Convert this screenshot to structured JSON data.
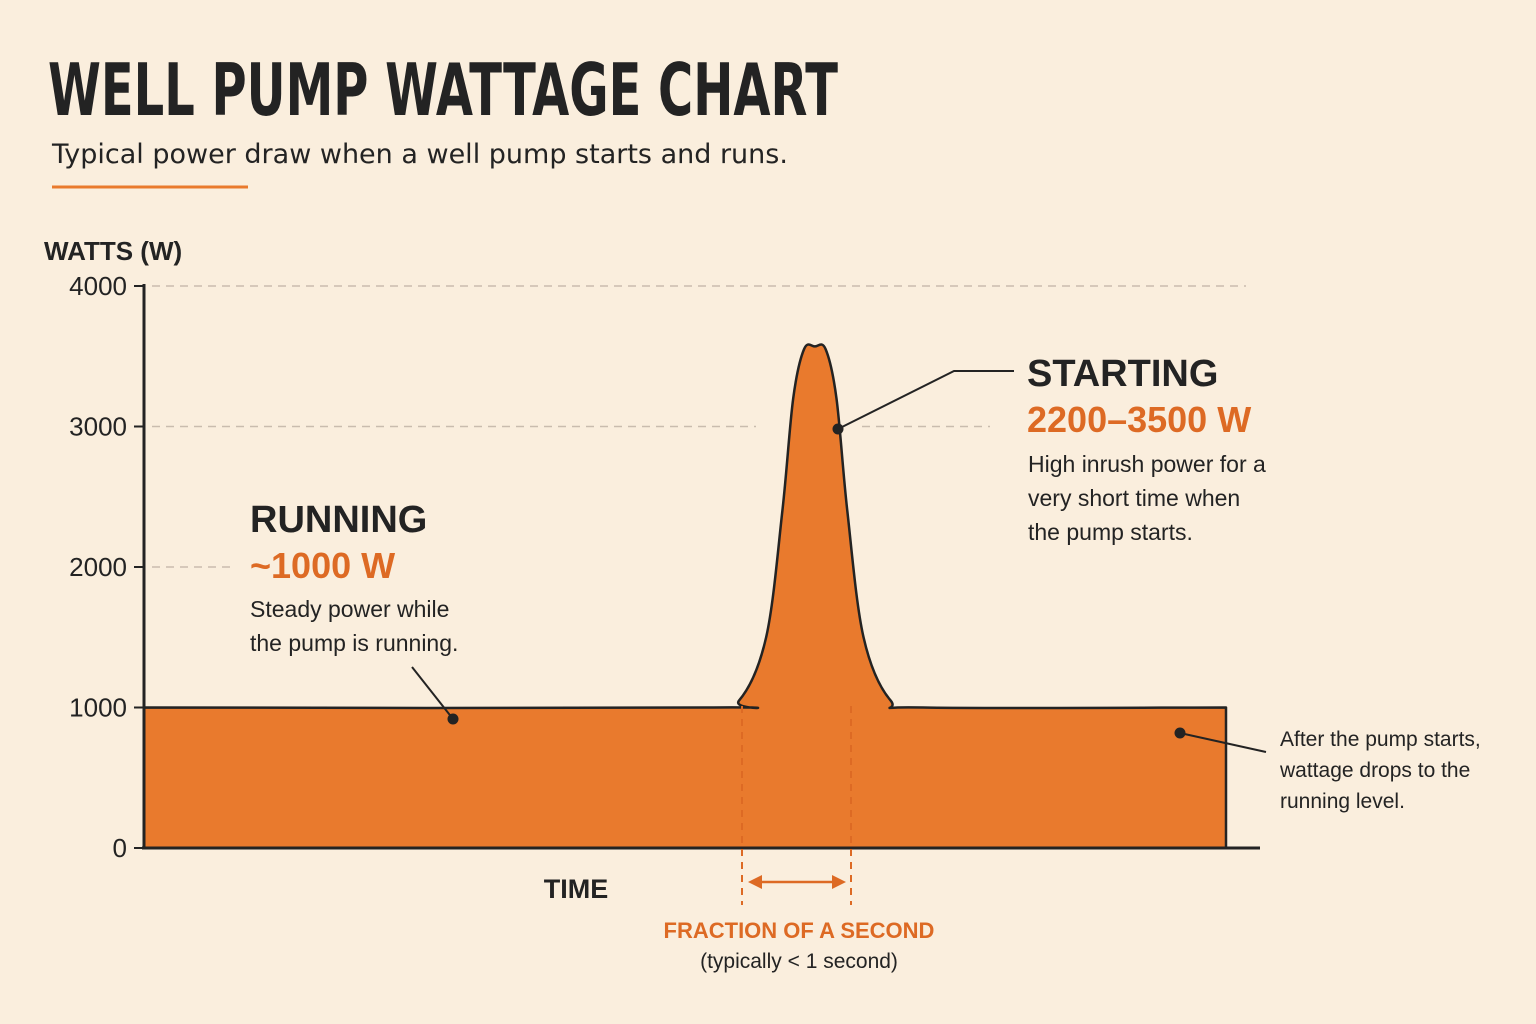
{
  "title": "WELL PUMP WATTAGE CHART",
  "subtitle": "Typical power draw when a well pump starts and runs.",
  "colors": {
    "background": "#faeedd",
    "accent": "#e97a2d",
    "accent_text": "#dd6a24",
    "ink": "#232323",
    "grid": "#c9bcae"
  },
  "chart_data": {
    "type": "area",
    "ylabel": "WATTS (W)",
    "xlabel": "TIME",
    "ylim": [
      0,
      4000
    ],
    "yticks": [
      "0",
      "1000",
      "2000",
      "3000",
      "4000"
    ],
    "grid": "dashed horizontal",
    "series": [
      {
        "points": [
          [
            0,
            1000
          ],
          [
            0.52,
            1000
          ],
          [
            0.55,
            1050
          ],
          [
            0.575,
            1500
          ],
          [
            0.59,
            2400
          ],
          [
            0.6,
            3200
          ],
          [
            0.61,
            3550
          ],
          [
            0.62,
            3570
          ],
          [
            0.63,
            3550
          ],
          [
            0.64,
            3200
          ],
          [
            0.65,
            2400
          ],
          [
            0.665,
            1500
          ],
          [
            0.69,
            1050
          ],
          [
            0.72,
            1000
          ],
          [
            1.0,
            1000
          ]
        ]
      }
    ],
    "annotations": {
      "running": {
        "heading": "RUNNING",
        "value": "~1000 W",
        "text_lines": [
          "Steady power while",
          "the pump is running."
        ]
      },
      "starting": {
        "heading": "STARTING",
        "value": "2200–3500 W",
        "text_lines": [
          "High inrush power for a",
          "very short time when",
          "the pump starts."
        ]
      },
      "after": {
        "text_lines": [
          "After the pump starts,",
          "wattage drops to the",
          "running level."
        ]
      },
      "duration": {
        "label": "FRACTION OF A SECOND",
        "sublabel": "(typically < 1 second)"
      }
    }
  }
}
